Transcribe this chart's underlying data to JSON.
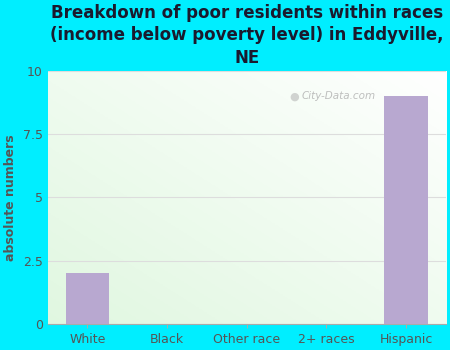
{
  "title": "Breakdown of poor residents within races\n(income below poverty level) in Eddyville,\nNE",
  "categories": [
    "White",
    "Black",
    "Other race",
    "2+ races",
    "Hispanic"
  ],
  "values": [
    2,
    0,
    0,
    0,
    9
  ],
  "bar_color": "#b8a8d0",
  "ylabel": "absolute numbers",
  "ylim": [
    0,
    10
  ],
  "yticks": [
    0,
    2.5,
    5,
    7.5,
    10
  ],
  "bg_outer": "#00eeff",
  "bg_plot_topleft": "#e8f5e0",
  "bg_plot_bottomright": "#f8fff8",
  "title_color": "#1a1a2e",
  "tick_color": "#555555",
  "ylabel_color": "#555555",
  "title_fontsize": 12,
  "axis_label_fontsize": 9,
  "tick_fontsize": 9,
  "watermark": "City-Data.com",
  "grid_color": "#dddddd"
}
